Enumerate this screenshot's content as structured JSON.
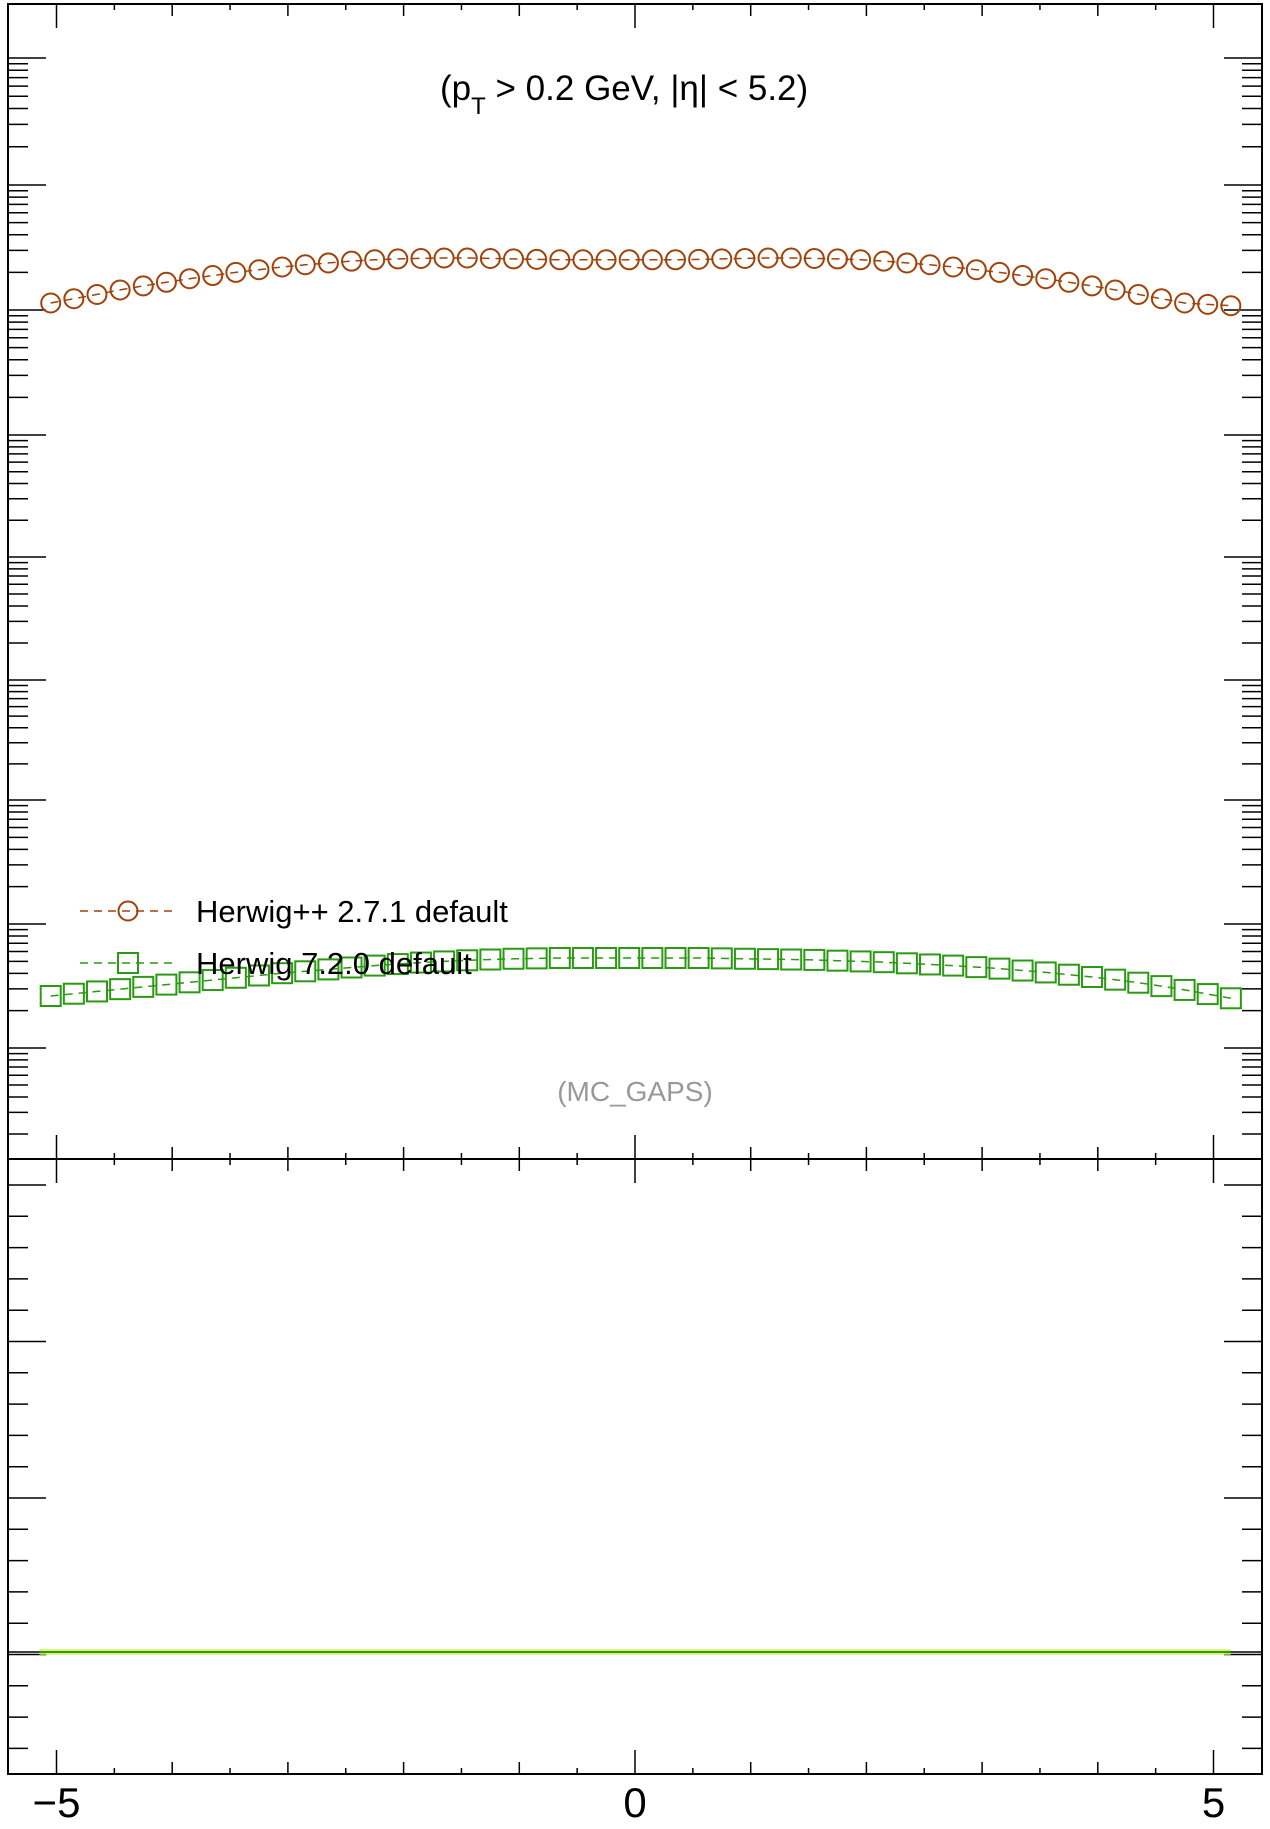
{
  "chart_data": {
    "type": "scatter",
    "subtitle_main": "(p",
    "subtitle_sub": "T",
    "subtitle_rest": " > 0.2 GeV, |η| < 5.2)",
    "watermark": "(MC_GAPS)",
    "xlim": [
      -5.2,
      5.2
    ],
    "x_ticks": [
      -5,
      0,
      5
    ],
    "x_tick_labels": [
      "−5",
      "0",
      "5"
    ],
    "y_scale": "log",
    "legend_position": "lower-left",
    "x": [
      -5.05,
      -4.85,
      -4.65,
      -4.45,
      -4.25,
      -4.05,
      -3.85,
      -3.65,
      -3.45,
      -3.25,
      -3.05,
      -2.85,
      -2.65,
      -2.45,
      -2.25,
      -2.05,
      -1.85,
      -1.65,
      -1.45,
      -1.25,
      -1.05,
      -0.85,
      -0.65,
      -0.45,
      -0.25,
      -0.05,
      0.15,
      0.35,
      0.55,
      0.75,
      0.95,
      1.15,
      1.35,
      1.55,
      1.75,
      1.95,
      2.15,
      2.35,
      2.55,
      2.75,
      2.95,
      3.15,
      3.35,
      3.55,
      3.75,
      3.95,
      4.15,
      4.35,
      4.55,
      4.75,
      4.95,
      5.15
    ],
    "series": [
      {
        "name": "Herwig++ 2.7.1 default",
        "color": "#a0420a",
        "marker": "circle",
        "values": [
          0.0,
          0.095,
          0.19,
          0.29,
          0.38,
          0.46,
          0.54,
          0.61,
          0.68,
          0.74,
          0.8,
          0.85,
          0.89,
          0.93,
          0.96,
          0.98,
          0.99,
          1.0,
          1.0,
          0.99,
          0.98,
          0.97,
          0.96,
          0.96,
          0.96,
          0.96,
          0.96,
          0.96,
          0.97,
          0.98,
          0.99,
          1.0,
          1.0,
          0.99,
          0.98,
          0.96,
          0.93,
          0.89,
          0.85,
          0.8,
          0.74,
          0.68,
          0.61,
          0.54,
          0.46,
          0.38,
          0.29,
          0.19,
          0.095,
          0.0,
          -0.03,
          -0.06
        ]
      },
      {
        "name": "Herwig 7.2.0 default",
        "color": "#2a9a12",
        "marker": "square",
        "values": [
          0.0,
          0.06,
          0.12,
          0.18,
          0.24,
          0.3,
          0.36,
          0.42,
          0.48,
          0.54,
          0.6,
          0.65,
          0.7,
          0.75,
          0.8,
          0.84,
          0.88,
          0.91,
          0.94,
          0.96,
          0.98,
          0.99,
          1.0,
          1.0,
          1.0,
          1.0,
          1.0,
          1.0,
          1.0,
          0.99,
          0.98,
          0.97,
          0.96,
          0.95,
          0.93,
          0.91,
          0.89,
          0.86,
          0.83,
          0.8,
          0.76,
          0.72,
          0.67,
          0.62,
          0.56,
          0.5,
          0.43,
          0.35,
          0.26,
          0.16,
          0.05,
          -0.06
        ]
      }
    ],
    "ratio_line_color": "#2a9a12",
    "ratio_band_color": "#ccee44",
    "ratio_reference": 1.0
  }
}
